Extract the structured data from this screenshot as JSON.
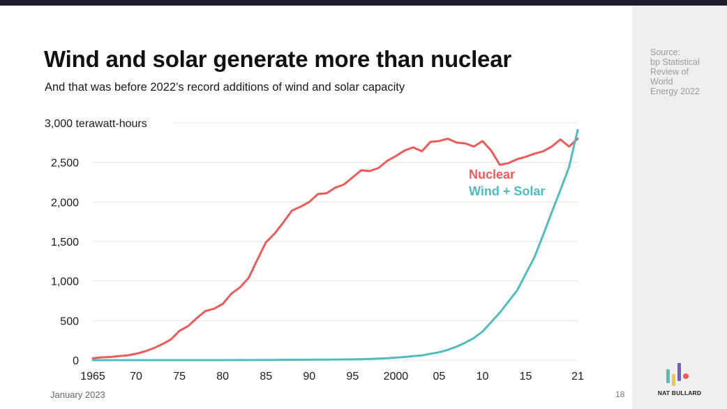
{
  "slide": {
    "title": "Wind and solar generate more than nuclear",
    "subtitle": "And that was before 2022’s record additions of wind and solar capacity",
    "source_lines": [
      "Source:",
      "bp Statistical",
      "Review of",
      "World",
      "Energy 2022"
    ],
    "date": "January 2023",
    "page_number": "18",
    "brand": "NAT BULLARD"
  },
  "colors": {
    "nuclear": "#ee5a5a",
    "wind_solar": "#4dbdbd",
    "grid": "#e3e3e3",
    "logo": [
      "#4dbdbd",
      "#f4c542",
      "#6c5fc7",
      "#ee5a5a"
    ]
  },
  "chart_data": {
    "type": "line",
    "title": "",
    "xlabel": "",
    "ylabel": "terawatt-hours",
    "y_unit_label": "3,000 terawatt-hours",
    "ylim": [
      0,
      3000
    ],
    "xlim": [
      1965,
      2021
    ],
    "grid": true,
    "y_ticks": [
      {
        "value": 0,
        "label": "0"
      },
      {
        "value": 500,
        "label": "500"
      },
      {
        "value": 1000,
        "label": "1,000"
      },
      {
        "value": 1500,
        "label": "1,500"
      },
      {
        "value": 2000,
        "label": "2,000"
      },
      {
        "value": 2500,
        "label": "2,500"
      },
      {
        "value": 3000,
        "label": "3,000 terawatt-hours"
      }
    ],
    "x_ticks": [
      {
        "value": 1965,
        "label": "1965"
      },
      {
        "value": 1970,
        "label": "70"
      },
      {
        "value": 1975,
        "label": "75"
      },
      {
        "value": 1980,
        "label": "80"
      },
      {
        "value": 1985,
        "label": "85"
      },
      {
        "value": 1990,
        "label": "90"
      },
      {
        "value": 1995,
        "label": "95"
      },
      {
        "value": 2000,
        "label": "2000"
      },
      {
        "value": 2005,
        "label": "05"
      },
      {
        "value": 2010,
        "label": "10"
      },
      {
        "value": 2015,
        "label": "15"
      },
      {
        "value": 2021,
        "label": "21"
      }
    ],
    "x": [
      1965,
      1966,
      1967,
      1968,
      1969,
      1970,
      1971,
      1972,
      1973,
      1974,
      1975,
      1976,
      1977,
      1978,
      1979,
      1980,
      1981,
      1982,
      1983,
      1984,
      1985,
      1986,
      1987,
      1988,
      1989,
      1990,
      1991,
      1992,
      1993,
      1994,
      1995,
      1996,
      1997,
      1998,
      1999,
      2000,
      2001,
      2002,
      2003,
      2004,
      2005,
      2006,
      2007,
      2008,
      2009,
      2010,
      2011,
      2012,
      2013,
      2014,
      2015,
      2016,
      2017,
      2018,
      2019,
      2020,
      2021
    ],
    "series": [
      {
        "name": "Nuclear",
        "color": "#ee5a5a",
        "values": [
          25,
          35,
          40,
          50,
          60,
          80,
          110,
          150,
          200,
          260,
          370,
          430,
          530,
          620,
          650,
          710,
          840,
          920,
          1040,
          1270,
          1490,
          1600,
          1740,
          1890,
          1940,
          2000,
          2100,
          2110,
          2180,
          2220,
          2310,
          2400,
          2390,
          2430,
          2520,
          2580,
          2650,
          2690,
          2640,
          2760,
          2770,
          2800,
          2750,
          2740,
          2700,
          2770,
          2650,
          2470,
          2490,
          2540,
          2570,
          2610,
          2640,
          2700,
          2790,
          2700,
          2800
        ]
      },
      {
        "name": "Wind + Solar",
        "color": "#4dbdbd",
        "values": [
          0,
          0,
          0,
          0,
          0,
          0,
          0,
          0,
          0,
          0,
          0,
          0,
          0,
          0,
          0,
          0,
          1,
          1,
          1,
          2,
          3,
          3,
          4,
          4,
          4,
          5,
          6,
          7,
          8,
          9,
          10,
          12,
          15,
          20,
          25,
          32,
          40,
          50,
          60,
          80,
          100,
          130,
          170,
          220,
          280,
          360,
          480,
          600,
          740,
          880,
          1090,
          1300,
          1580,
          1870,
          2150,
          2440,
          2910
        ]
      }
    ]
  }
}
